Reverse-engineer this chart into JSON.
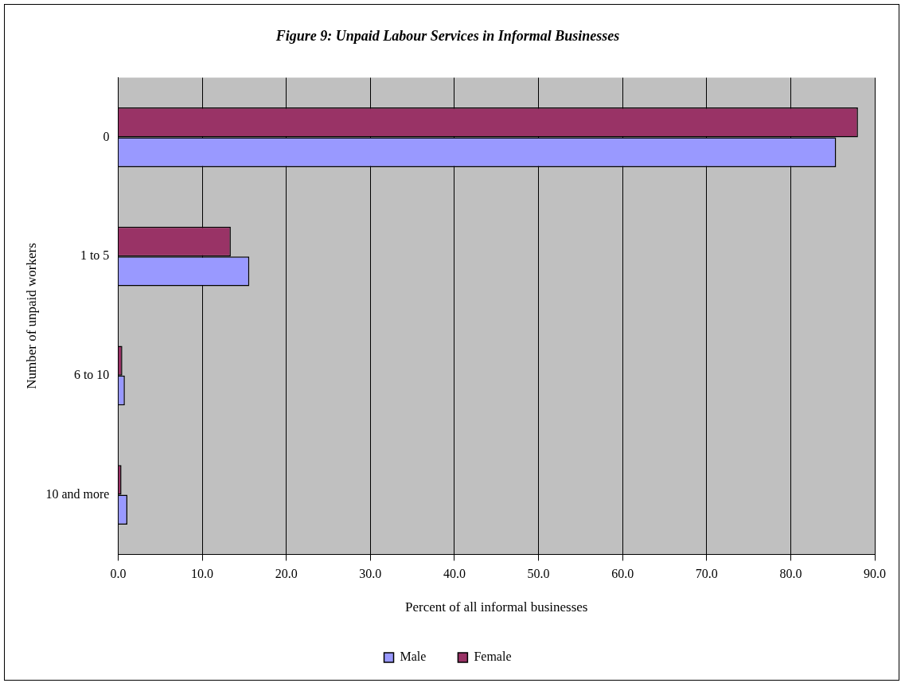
{
  "chart_data": {
    "type": "bar",
    "orientation": "horizontal",
    "title": "Figure 9: Unpaid Labour Services in Informal Businesses",
    "xlabel": "Percent of all informal businesses",
    "ylabel": "Number of unpaid workers",
    "categories": [
      "0",
      "1 to 5",
      "6 to 10",
      "10 and more"
    ],
    "series": [
      {
        "name": "Male",
        "color": "#9999ff",
        "values": [
          85.4,
          15.6,
          0.8,
          1.1
        ]
      },
      {
        "name": "Female",
        "color": "#993366",
        "values": [
          88.0,
          13.4,
          0.5,
          0.4
        ]
      }
    ],
    "xlim": [
      0,
      90
    ],
    "xticks": [
      {
        "value": 0,
        "label": "0.0"
      },
      {
        "value": 10,
        "label": "10.0"
      },
      {
        "value": 20,
        "label": "20.0"
      },
      {
        "value": 30,
        "label": "30.0"
      },
      {
        "value": 40,
        "label": "40.0"
      },
      {
        "value": 50,
        "label": "50.0"
      },
      {
        "value": 60,
        "label": "60.0"
      },
      {
        "value": 70,
        "label": "70.0"
      },
      {
        "value": 80,
        "label": "80.0"
      },
      {
        "value": 90,
        "label": "90.0"
      }
    ],
    "grid": "x",
    "legend": "bottom"
  }
}
